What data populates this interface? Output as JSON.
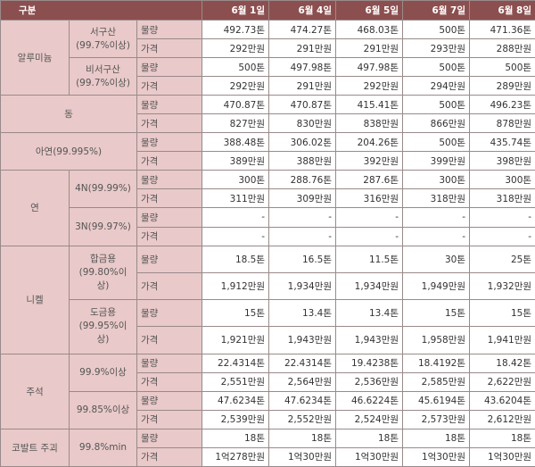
{
  "header": {
    "label": "구분",
    "dates": [
      "6월 1일",
      "6월 4일",
      "6월 5일",
      "6월 7일",
      "6월 8일"
    ]
  },
  "groups": [
    {
      "name": "알루미늄",
      "items": [
        {
          "name": "서구산",
          "grade": "(99.7%이상)",
          "rows": [
            {
              "label": "물량",
              "values": [
                "492.73톤",
                "474.27톤",
                "468.03톤",
                "500톤",
                "471.36톤"
              ]
            },
            {
              "label": "가격",
              "values": [
                "292만원",
                "291만원",
                "291만원",
                "293만원",
                "288만원"
              ]
            }
          ]
        },
        {
          "name": "비서구산",
          "grade": "(99.7%이상)",
          "rows": [
            {
              "label": "물량",
              "values": [
                "500톤",
                "497.98톤",
                "497.98톤",
                "500톤",
                "500톤"
              ]
            },
            {
              "label": "가격",
              "values": [
                "292만원",
                "291만원",
                "292만원",
                "294만원",
                "289만원"
              ]
            }
          ]
        }
      ]
    },
    {
      "name": "동",
      "items": [
        {
          "rows": [
            {
              "label": "물량",
              "values": [
                "470.87톤",
                "470.87톤",
                "415.41톤",
                "500톤",
                "496.23톤"
              ]
            },
            {
              "label": "가격",
              "values": [
                "827만원",
                "830만원",
                "838만원",
                "866만원",
                "878만원"
              ]
            }
          ]
        }
      ]
    },
    {
      "name": "아연(99.995%)",
      "items": [
        {
          "rows": [
            {
              "label": "물량",
              "values": [
                "388.48톤",
                "306.02톤",
                "204.26톤",
                "500톤",
                "435.74톤"
              ]
            },
            {
              "label": "가격",
              "values": [
                "389만원",
                "388만원",
                "392만원",
                "399만원",
                "398만원"
              ]
            }
          ]
        }
      ]
    },
    {
      "name": "연",
      "items": [
        {
          "name": "4N(99.99%)",
          "rows": [
            {
              "label": "물량",
              "values": [
                "300톤",
                "288.76톤",
                "287.6톤",
                "300톤",
                "300톤"
              ]
            },
            {
              "label": "가격",
              "values": [
                "311만원",
                "309만원",
                "316만원",
                "318만원",
                "318만원"
              ]
            }
          ]
        },
        {
          "name": "3N(99.97%)",
          "rows": [
            {
              "label": "물량",
              "values": [
                "-",
                "-",
                "-",
                "-",
                "-"
              ]
            },
            {
              "label": "가격",
              "values": [
                "-",
                "-",
                "-",
                "-",
                "-"
              ]
            }
          ]
        }
      ]
    },
    {
      "name": "니켈",
      "items": [
        {
          "name": "합금용",
          "grade": "(99.80%이상)",
          "rows": [
            {
              "label": "물량",
              "values": [
                "18.5톤",
                "16.5톤",
                "11.5톤",
                "30톤",
                "25톤"
              ]
            },
            {
              "label": "가격",
              "values": [
                "1,912만원",
                "1,934만원",
                "1,934만원",
                "1,949만원",
                "1,932만원"
              ]
            }
          ]
        },
        {
          "name": "도금용",
          "grade": "(99.95%이상)",
          "rows": [
            {
              "label": "물량",
              "values": [
                "15톤",
                "13.4톤",
                "13.4톤",
                "15톤",
                "15톤"
              ]
            },
            {
              "label": "가격",
              "values": [
                "1,921만원",
                "1,943만원",
                "1,943만원",
                "1,958만원",
                "1,941만원"
              ]
            }
          ]
        }
      ]
    },
    {
      "name": "주석",
      "items": [
        {
          "name": "99.9%이상",
          "rows": [
            {
              "label": "물량",
              "values": [
                "22.4314톤",
                "22.4314톤",
                "19.4238톤",
                "18.4192톤",
                "18.42톤"
              ]
            },
            {
              "label": "가격",
              "values": [
                "2,551만원",
                "2,564만원",
                "2,536만원",
                "2,585만원",
                "2,622만원"
              ]
            }
          ]
        },
        {
          "name": "99.85%이상",
          "rows": [
            {
              "label": "물량",
              "values": [
                "47.6234톤",
                "47.6234톤",
                "46.6224톤",
                "45.6194톤",
                "43.6204톤"
              ]
            },
            {
              "label": "가격",
              "values": [
                "2,539만원",
                "2,552만원",
                "2,524만원",
                "2,573만원",
                "2,612만원"
              ]
            }
          ]
        }
      ]
    },
    {
      "name": "코발트 주괴",
      "items": [
        {
          "name": "99.8%min",
          "rows": [
            {
              "label": "물량",
              "values": [
                "18톤",
                "18톤",
                "18톤",
                "18톤",
                "18톤"
              ]
            },
            {
              "label": "가격",
              "values": [
                "1억278만원",
                "1억30만원",
                "1억30만원",
                "1억30만원",
                "1억30만원"
              ]
            }
          ]
        }
      ]
    }
  ]
}
